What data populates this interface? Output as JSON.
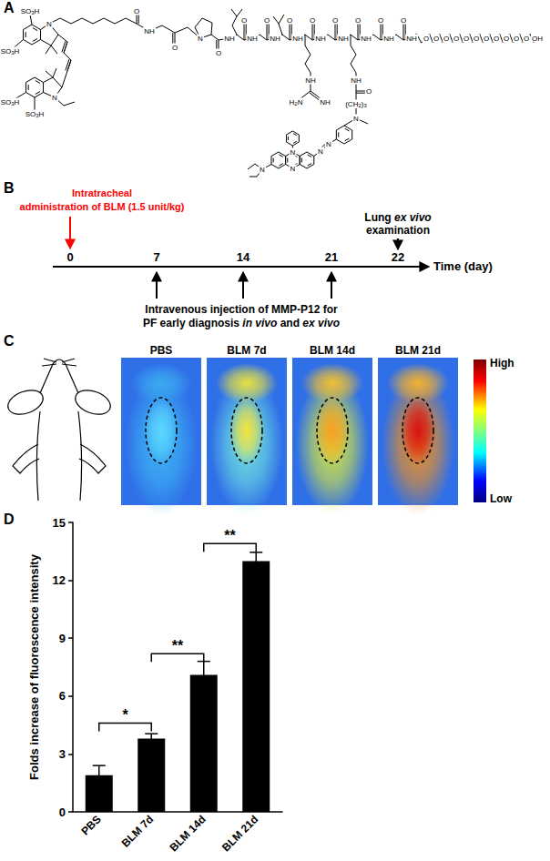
{
  "panel_labels": [
    "A",
    "B",
    "C",
    "D"
  ],
  "structure": {
    "labels": [
      "SO3H",
      "SO3H",
      "N",
      "SO3H",
      "SO3H",
      "N",
      "O",
      "NH",
      "O",
      "N",
      "NH",
      "NH",
      "NH",
      "NH",
      "NH",
      "NH",
      "NH",
      "NH",
      "NH",
      "O",
      "O",
      "O",
      "O",
      "O",
      "O",
      "O",
      "O",
      "O",
      "NH",
      "H2N",
      "NH",
      "NH",
      "O",
      "(CH2)3",
      "N",
      "N",
      "N",
      "N",
      "N",
      "N",
      "O",
      "O",
      "O",
      "O",
      "O",
      "O",
      "O",
      "O",
      "O",
      "O",
      "O",
      "OH"
    ]
  },
  "timeline": {
    "treatment": [
      "Intratracheal",
      "administration of BLM (1.5 unit/kg)"
    ],
    "days": [
      0,
      7,
      14,
      21,
      22
    ],
    "axis_label": "Time (day)",
    "examination": [
      [
        {
          "text": "Lung "
        },
        {
          "text": "ex vivo",
          "italic": true
        }
      ],
      [
        {
          "text": "examination"
        }
      ]
    ],
    "injection": [
      [
        {
          "text": "Intravenous injection of MMP-P12 for"
        }
      ],
      [
        {
          "text": "PF early diagnosis "
        },
        {
          "text": "in vivo",
          "italic": true
        },
        {
          "text": " and "
        },
        {
          "text": "ex vivo",
          "italic": true
        }
      ]
    ]
  },
  "imaging": {
    "groups": [
      "PBS",
      "BLM 7d",
      "BLM 14d",
      "BLM 21d"
    ],
    "colorbar": {
      "high": "High",
      "low": "Low"
    }
  },
  "chart_data": {
    "type": "bar",
    "y_label": "Folds increase of fluorescence intensity",
    "categories": [
      "PBS",
      "BLM 7d",
      "BLM 14d",
      "BLM 21d"
    ],
    "values": [
      1.9,
      3.8,
      7.1,
      13.0
    ],
    "errors": [
      0.5,
      0.25,
      0.7,
      0.45
    ],
    "color": "#000000",
    "ylim": [
      0,
      15
    ],
    "yticks": [
      0,
      3,
      6,
      9,
      12,
      15
    ],
    "grid": false,
    "significance": [
      {
        "from": 0,
        "to": 1,
        "y": 4.6,
        "label": "*"
      },
      {
        "from": 1,
        "to": 2,
        "y": 8.2,
        "label": "**"
      },
      {
        "from": 2,
        "to": 3,
        "y": 13.9,
        "label": "**"
      }
    ]
  }
}
